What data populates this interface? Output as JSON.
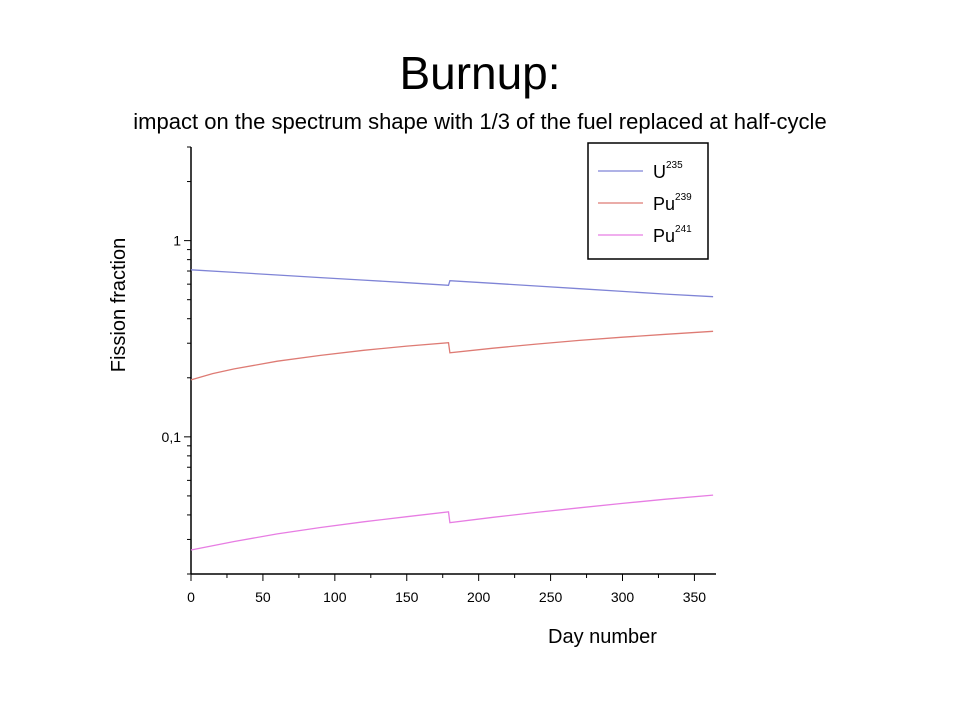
{
  "slide": {
    "title": "Burnup:",
    "subtitle": "impact on the spectrum shape with 1/3 of the fuel replaced at half-cycle"
  },
  "chart_data": {
    "type": "line",
    "xlabel": "Day number",
    "ylabel": "Fission fraction",
    "xlim": [
      0,
      365
    ],
    "ylim": [
      0.02,
      3.0
    ],
    "yscale": "log",
    "x_ticks": [
      0,
      50,
      100,
      150,
      200,
      250,
      300,
      350
    ],
    "x_tick_labels": [
      "0",
      "50",
      "100",
      "150",
      "200",
      "250",
      "300",
      "350"
    ],
    "y_ticks": [
      0.1,
      1
    ],
    "y_tick_labels": [
      "0,1",
      "1"
    ],
    "grid": false,
    "legend": {
      "position": "top-right"
    },
    "series": [
      {
        "name": "U",
        "superscript": "235",
        "color": "#7f84d6",
        "x": [
          0,
          30,
          60,
          90,
          120,
          150,
          179,
          180,
          210,
          240,
          270,
          300,
          330,
          363
        ],
        "values": [
          0.71,
          0.689,
          0.668,
          0.648,
          0.629,
          0.61,
          0.592,
          0.625,
          0.606,
          0.587,
          0.569,
          0.551,
          0.534,
          0.518
        ]
      },
      {
        "name": "Pu",
        "superscript": "239",
        "color": "#de7b74",
        "x": [
          0,
          15,
          30,
          60,
          90,
          120,
          150,
          179,
          180,
          210,
          240,
          270,
          300,
          330,
          363
        ],
        "values": [
          0.195,
          0.21,
          0.222,
          0.243,
          0.26,
          0.276,
          0.29,
          0.302,
          0.268,
          0.283,
          0.297,
          0.31,
          0.322,
          0.333,
          0.345
        ]
      },
      {
        "name": "Pu",
        "superscript": "241",
        "color": "#e77de3",
        "x": [
          0,
          30,
          60,
          90,
          120,
          150,
          179,
          180,
          210,
          240,
          270,
          300,
          330,
          363
        ],
        "values": [
          0.0265,
          0.0293,
          0.032,
          0.0345,
          0.0369,
          0.0392,
          0.0415,
          0.0365,
          0.0389,
          0.0412,
          0.0435,
          0.0458,
          0.0481,
          0.0505
        ]
      }
    ]
  }
}
